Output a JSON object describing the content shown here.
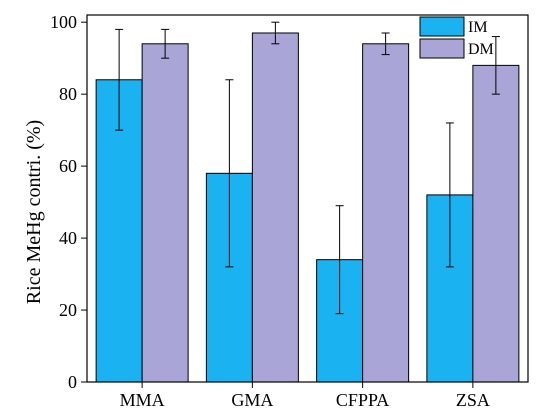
{
  "chart_data": {
    "type": "bar",
    "categories": [
      "MMA",
      "GMA",
      "CFPPA",
      "ZSA"
    ],
    "series": [
      {
        "name": "IM",
        "values": [
          84,
          58,
          34,
          52
        ],
        "errors": [
          14,
          26,
          15,
          20
        ],
        "color": "#1ab2f0"
      },
      {
        "name": "DM",
        "values": [
          94,
          97,
          94,
          88
        ],
        "errors": [
          4,
          3,
          3,
          8
        ],
        "color": "#a9a5d6"
      }
    ],
    "title": "",
    "xlabel": "",
    "ylabel": "Rice MeHg contri. (%)",
    "ylim": [
      0,
      102
    ],
    "yticks": [
      0,
      20,
      40,
      60,
      80,
      100
    ],
    "grid": false,
    "legend_position": "top-right",
    "error_bars": true
  }
}
